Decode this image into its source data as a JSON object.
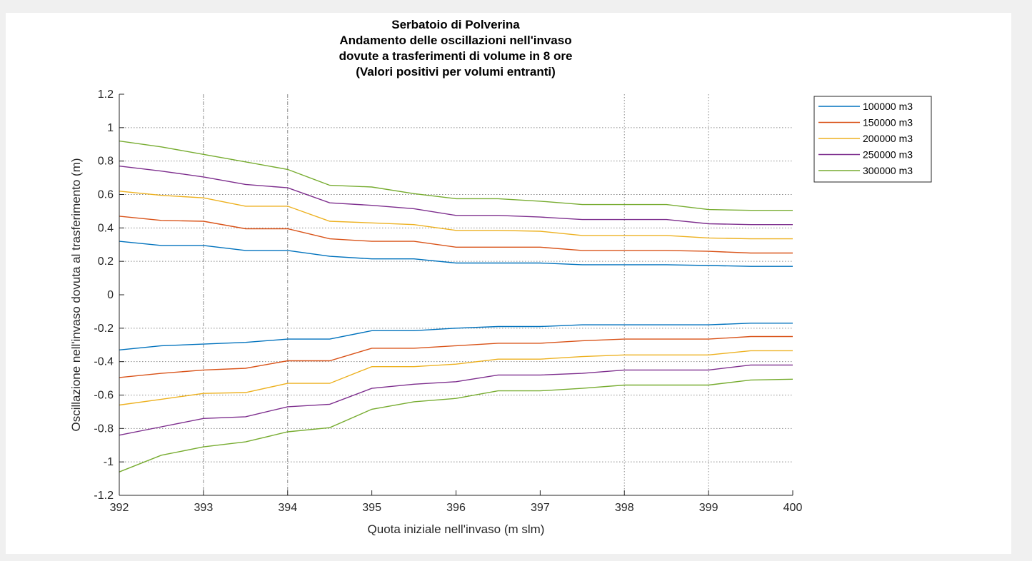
{
  "chart_data": {
    "type": "line",
    "title": [
      "Serbatoio di Polverina",
      "Andamento delle oscillazioni nell'invaso",
      "dovute a trasferimenti di volume in 8 ore",
      "(Valori positivi per volumi entranti)"
    ],
    "xlabel": "Quota iniziale nell'invaso (m slm)",
    "ylabel": "Oscillazione nell'invaso dovuta al trasferimento (m)",
    "xlim": [
      392,
      400
    ],
    "ylim": [
      -1.2,
      1.2
    ],
    "xticks": [
      392,
      393,
      394,
      395,
      396,
      397,
      398,
      399,
      400
    ],
    "xtick_labels": [
      "392",
      "393",
      "394",
      "395",
      "396",
      "397",
      "398",
      "399",
      "400"
    ],
    "yticks": [
      -1.2,
      -1,
      -0.8,
      -0.6,
      -0.4,
      -0.2,
      0,
      0.2,
      0.4,
      0.6,
      0.8,
      1,
      1.2
    ],
    "ytick_labels": [
      "-1.2",
      "-1",
      "-0.8",
      "-0.6",
      "-0.4",
      "-0.2",
      "0",
      "0.2",
      "0.4",
      "0.6",
      "0.8",
      "1",
      "1.2"
    ],
    "grid": "dotted",
    "vertical_gridlines": [
      393,
      394,
      398,
      399
    ],
    "legend_position": "outside-top-right",
    "x": [
      392,
      392.5,
      393,
      393.5,
      394,
      394.5,
      395,
      395.5,
      396,
      396.5,
      397,
      397.5,
      398,
      398.5,
      399,
      399.5,
      400
    ],
    "series": [
      {
        "name": "100000 m3",
        "color": "#0072BD",
        "values_positive": [
          0.32,
          0.295,
          0.295,
          0.265,
          0.265,
          0.23,
          0.215,
          0.215,
          0.19,
          0.19,
          0.19,
          0.18,
          0.18,
          0.18,
          0.175,
          0.17,
          0.17
        ],
        "values_negative": [
          -0.33,
          -0.305,
          -0.295,
          -0.285,
          -0.265,
          -0.265,
          -0.215,
          -0.215,
          -0.2,
          -0.19,
          -0.19,
          -0.18,
          -0.18,
          -0.18,
          -0.18,
          -0.17,
          -0.17
        ]
      },
      {
        "name": "150000 m3",
        "color": "#D95319",
        "values_positive": [
          0.47,
          0.445,
          0.44,
          0.395,
          0.395,
          0.335,
          0.32,
          0.32,
          0.285,
          0.285,
          0.285,
          0.265,
          0.265,
          0.265,
          0.26,
          0.25,
          0.25
        ],
        "values_negative": [
          -0.495,
          -0.47,
          -0.45,
          -0.44,
          -0.395,
          -0.395,
          -0.32,
          -0.32,
          -0.305,
          -0.29,
          -0.29,
          -0.275,
          -0.265,
          -0.265,
          -0.265,
          -0.25,
          -0.25
        ]
      },
      {
        "name": "200000 m3",
        "color": "#EDB120",
        "values_positive": [
          0.62,
          0.595,
          0.58,
          0.53,
          0.53,
          0.44,
          0.43,
          0.42,
          0.385,
          0.385,
          0.38,
          0.355,
          0.355,
          0.355,
          0.34,
          0.335,
          0.335
        ],
        "values_negative": [
          -0.66,
          -0.625,
          -0.59,
          -0.585,
          -0.53,
          -0.53,
          -0.43,
          -0.43,
          -0.415,
          -0.385,
          -0.385,
          -0.37,
          -0.36,
          -0.36,
          -0.36,
          -0.335,
          -0.335
        ]
      },
      {
        "name": "250000 m3",
        "color": "#7E2F8E",
        "values_positive": [
          0.77,
          0.74,
          0.705,
          0.66,
          0.64,
          0.55,
          0.535,
          0.515,
          0.475,
          0.475,
          0.465,
          0.45,
          0.45,
          0.45,
          0.425,
          0.42,
          0.42
        ],
        "values_negative": [
          -0.84,
          -0.79,
          -0.74,
          -0.73,
          -0.67,
          -0.655,
          -0.56,
          -0.535,
          -0.52,
          -0.48,
          -0.48,
          -0.47,
          -0.45,
          -0.45,
          -0.45,
          -0.42,
          -0.42
        ]
      },
      {
        "name": "300000 m3",
        "color": "#77AC30",
        "values_positive": [
          0.92,
          0.885,
          0.84,
          0.795,
          0.75,
          0.655,
          0.645,
          0.605,
          0.575,
          0.575,
          0.56,
          0.54,
          0.54,
          0.54,
          0.51,
          0.505,
          0.505
        ],
        "values_negative": [
          -1.06,
          -0.96,
          -0.91,
          -0.88,
          -0.82,
          -0.795,
          -0.685,
          -0.64,
          -0.62,
          -0.575,
          -0.575,
          -0.56,
          -0.54,
          -0.54,
          -0.54,
          -0.51,
          -0.505
        ]
      }
    ]
  }
}
